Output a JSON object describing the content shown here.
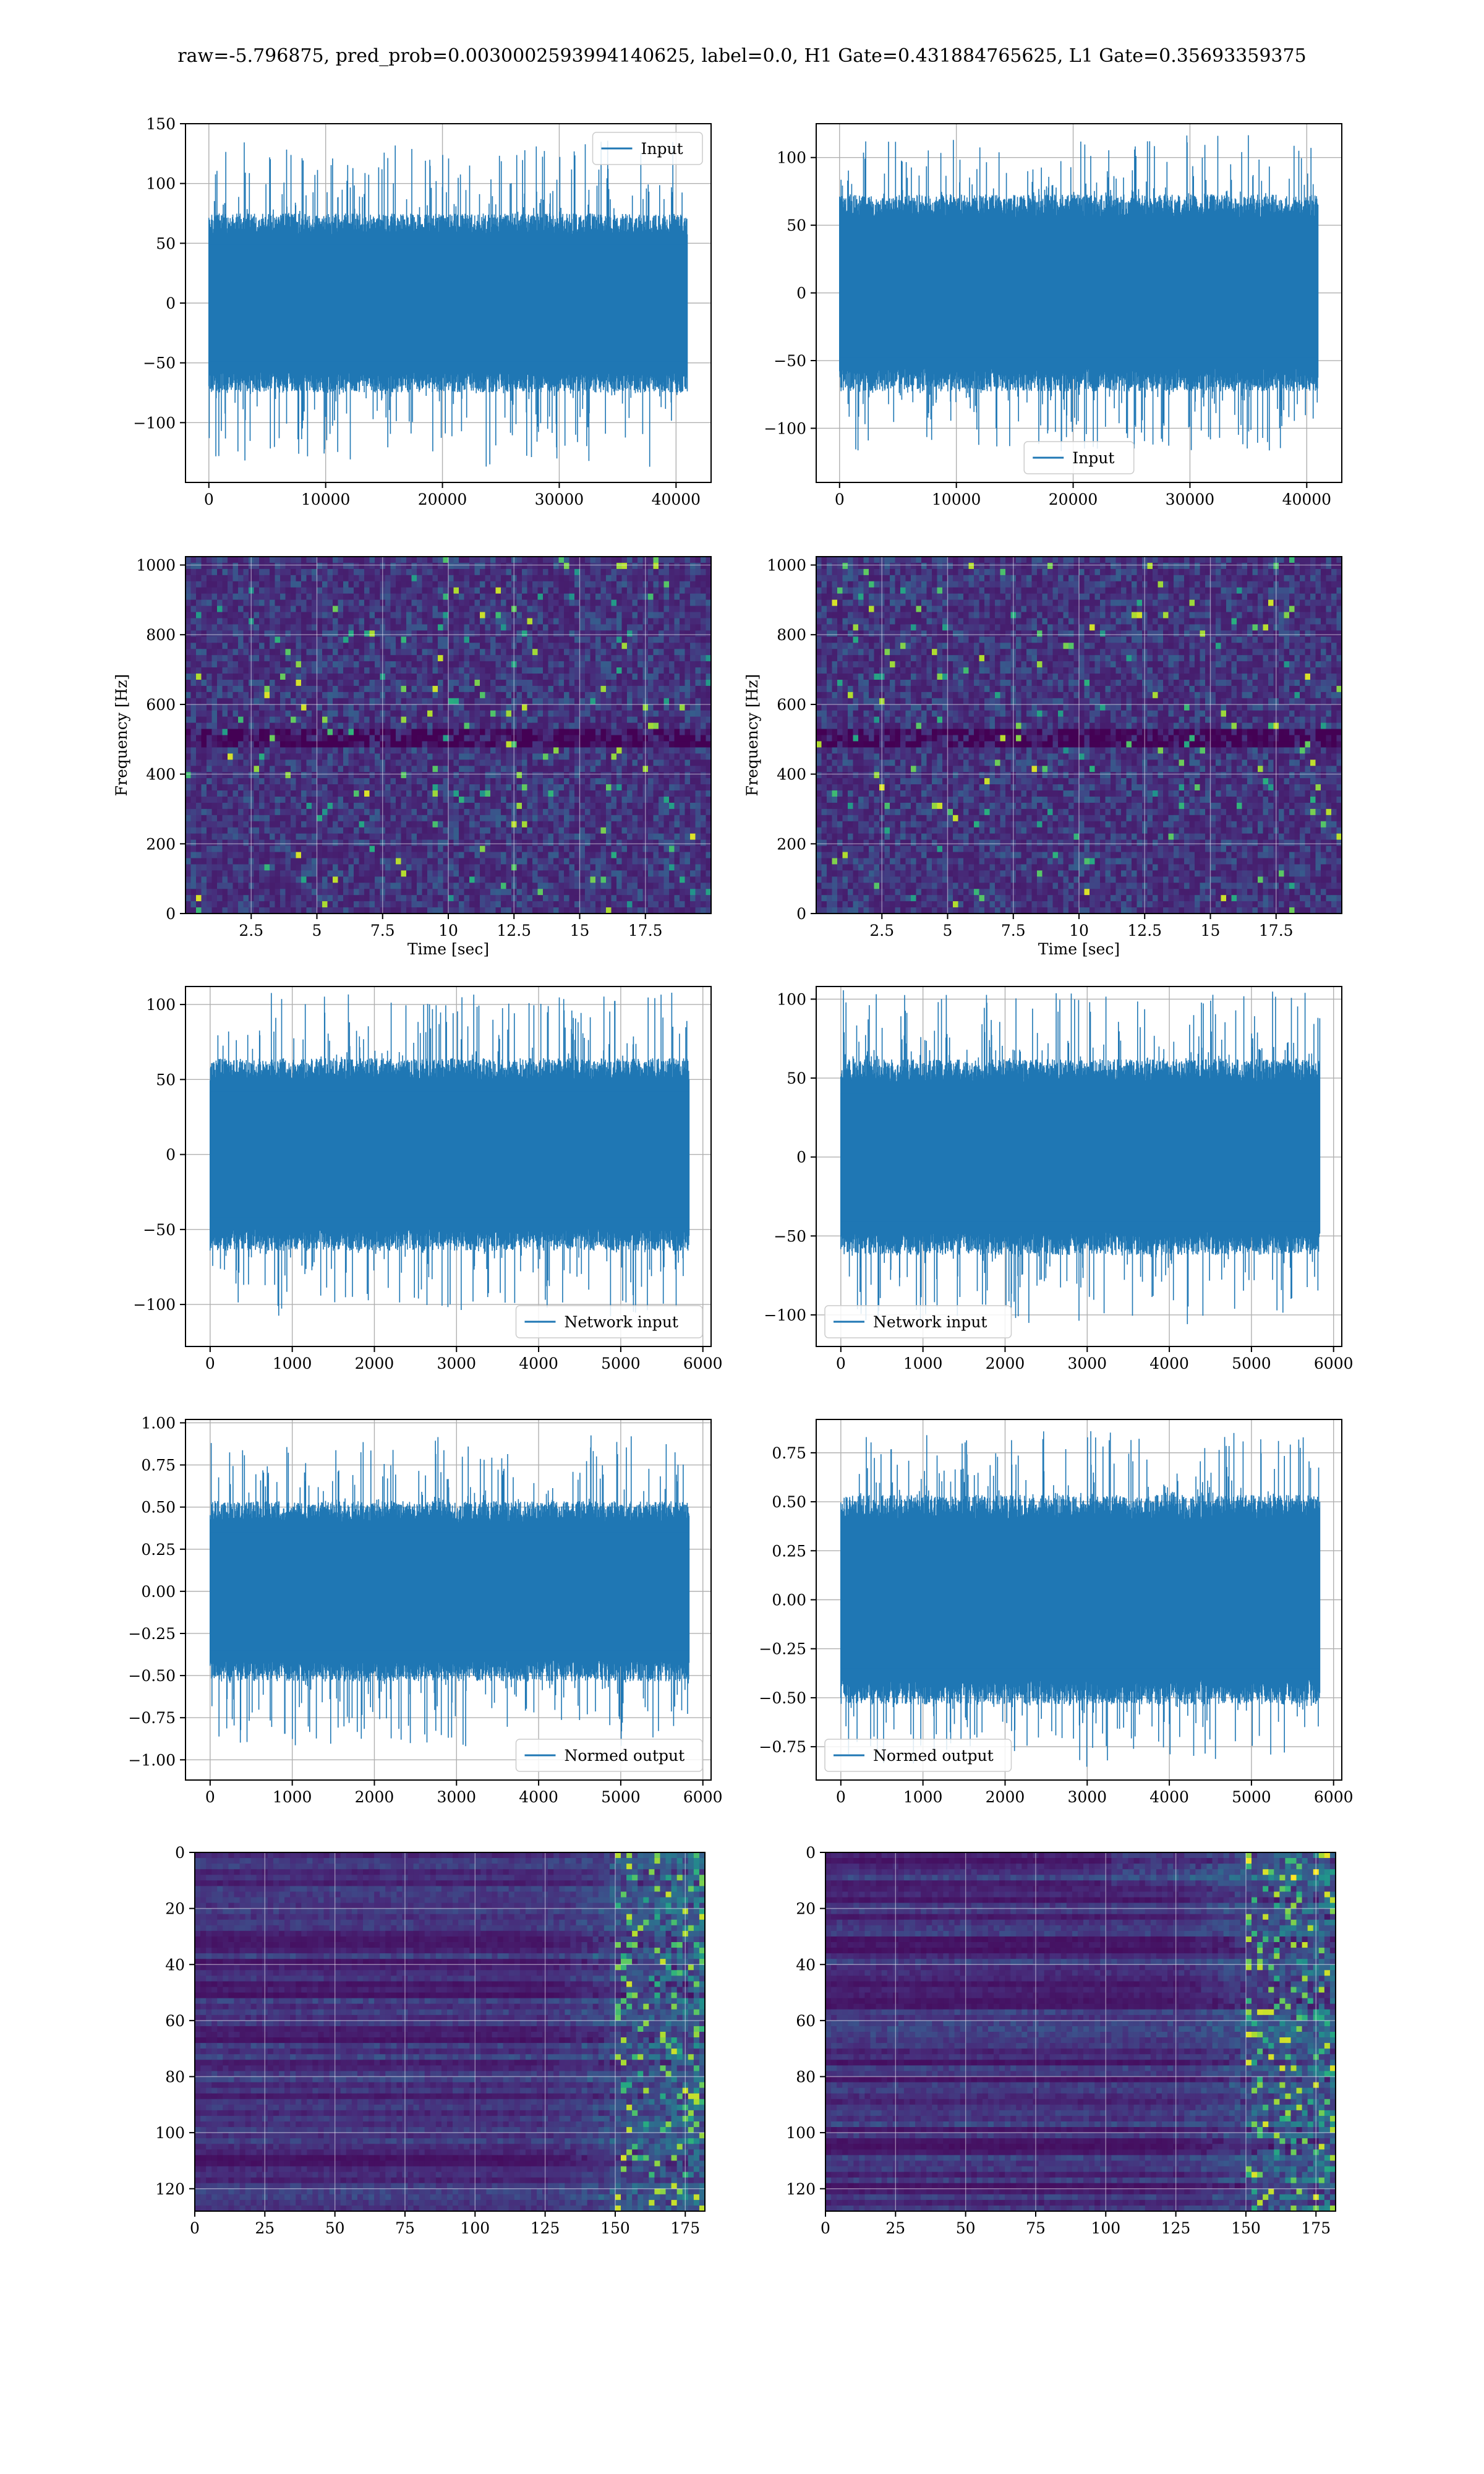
{
  "figure": {
    "suptitle": "raw=-5.796875, pred_prob=0.0030002593994140625, label=0.0, H1 Gate=0.431884765625, L1 Gate=0.35693359375"
  },
  "colors": {
    "series": "#1f77b4",
    "grid": "#b0b0b0",
    "viridis": [
      "#440154",
      "#472d7b",
      "#3b528b",
      "#2c728e",
      "#21918c",
      "#28ae80",
      "#5ec962",
      "#addc30",
      "#fde725"
    ]
  },
  "chart_data": [
    {
      "id": "h1-input",
      "type": "line",
      "column": 0,
      "row": 0,
      "xlim": [
        -2000,
        43000
      ],
      "ylim": [
        -150,
        150
      ],
      "xticks": [
        0,
        10000,
        20000,
        30000,
        40000
      ],
      "yticks": [
        -100,
        -50,
        0,
        50,
        100,
        150
      ],
      "xlabel": "",
      "ylabel": "",
      "grid": true,
      "series": [
        {
          "name": "Input",
          "x_range": [
            0,
            40960
          ],
          "envelope_core": 70,
          "envelope_peak": 137
        }
      ],
      "legend": {
        "position": "upper-right"
      }
    },
    {
      "id": "l1-input",
      "type": "line",
      "column": 1,
      "row": 0,
      "xlim": [
        -2000,
        43000
      ],
      "ylim": [
        -140,
        125
      ],
      "xticks": [
        0,
        10000,
        20000,
        30000,
        40000
      ],
      "yticks": [
        -100,
        -50,
        0,
        50,
        100
      ],
      "xlabel": "",
      "ylabel": "",
      "grid": true,
      "series": [
        {
          "name": "Input",
          "x_range": [
            0,
            40960
          ],
          "envelope_core": 68,
          "envelope_peak": 117
        }
      ],
      "legend": {
        "position": "lower-center"
      }
    },
    {
      "id": "h1-spectrogram",
      "type": "heatmap",
      "column": 0,
      "row": 1,
      "xlim": [
        0,
        20
      ],
      "ylim": [
        0,
        1024
      ],
      "xticks": [
        2.5,
        5.0,
        7.5,
        10.0,
        12.5,
        15.0,
        17.5
      ],
      "yticks": [
        0,
        200,
        400,
        600,
        800,
        1000
      ],
      "xlabel": "Time [sec]",
      "ylabel": "Frequency [Hz]",
      "grid": true,
      "colormap": "viridis"
    },
    {
      "id": "l1-spectrogram",
      "type": "heatmap",
      "column": 1,
      "row": 1,
      "xlim": [
        0,
        20
      ],
      "ylim": [
        0,
        1024
      ],
      "xticks": [
        2.5,
        5.0,
        7.5,
        10.0,
        12.5,
        15.0,
        17.5
      ],
      "yticks": [
        0,
        200,
        400,
        600,
        800,
        1000
      ],
      "xlabel": "Time [sec]",
      "ylabel": "Frequency [Hz]",
      "grid": true,
      "colormap": "viridis"
    },
    {
      "id": "h1-network-input",
      "type": "line",
      "column": 0,
      "row": 2,
      "xlim": [
        -300,
        6100
      ],
      "ylim": [
        -128,
        112
      ],
      "xticks": [
        0,
        1000,
        2000,
        3000,
        4000,
        5000,
        6000
      ],
      "yticks": [
        -100,
        -50,
        0,
        50,
        100
      ],
      "xlabel": "",
      "ylabel": "",
      "grid": true,
      "series": [
        {
          "name": "Network input",
          "x_range": [
            0,
            5832
          ],
          "envelope_core": 60,
          "envelope_peak": 108
        }
      ],
      "legend": {
        "position": "lower-right"
      }
    },
    {
      "id": "l1-network-input",
      "type": "line",
      "column": 1,
      "row": 2,
      "xlim": [
        -300,
        6100
      ],
      "ylim": [
        -120,
        108
      ],
      "xticks": [
        0,
        1000,
        2000,
        3000,
        4000,
        5000,
        6000
      ],
      "yticks": [
        -100,
        -50,
        0,
        50,
        100
      ],
      "xlabel": "",
      "ylabel": "",
      "grid": true,
      "series": [
        {
          "name": "Network input",
          "x_range": [
            0,
            5832
          ],
          "envelope_core": 58,
          "envelope_peak": 106
        }
      ],
      "legend": {
        "position": "lower-left"
      }
    },
    {
      "id": "h1-normed-output",
      "type": "line",
      "column": 0,
      "row": 3,
      "xlim": [
        -300,
        6100
      ],
      "ylim": [
        -1.12,
        1.02
      ],
      "xticks": [
        0,
        1000,
        2000,
        3000,
        4000,
        5000,
        6000
      ],
      "yticks": [
        -1.0,
        -0.75,
        -0.5,
        -0.25,
        0.0,
        0.25,
        0.5,
        0.75,
        1.0
      ],
      "ytick_decimals": 2,
      "xlabel": "",
      "ylabel": "",
      "grid": true,
      "series": [
        {
          "name": "Normed output",
          "x_range": [
            0,
            5832
          ],
          "envelope_core": 0.5,
          "envelope_peak": 0.93
        }
      ],
      "legend": {
        "position": "lower-right"
      }
    },
    {
      "id": "l1-normed-output",
      "type": "line",
      "column": 1,
      "row": 3,
      "xlim": [
        -300,
        6100
      ],
      "ylim": [
        -0.92,
        0.92
      ],
      "xticks": [
        0,
        1000,
        2000,
        3000,
        4000,
        5000,
        6000
      ],
      "yticks": [
        -0.75,
        -0.5,
        -0.25,
        0.0,
        0.25,
        0.5,
        0.75
      ],
      "ytick_decimals": 2,
      "xlabel": "",
      "ylabel": "",
      "grid": true,
      "series": [
        {
          "name": "Normed output",
          "x_range": [
            0,
            5832
          ],
          "envelope_core": 0.5,
          "envelope_peak": 0.86
        }
      ],
      "legend": {
        "position": "lower-left"
      }
    },
    {
      "id": "h1-feature-map",
      "type": "heatmap",
      "column": 0,
      "row": 4,
      "xlim": [
        0,
        182
      ],
      "ylim": [
        128,
        0
      ],
      "xticks": [
        0,
        25,
        50,
        75,
        100,
        125,
        150,
        175
      ],
      "yticks": [
        0,
        20,
        40,
        60,
        80,
        100,
        120
      ],
      "xlabel": "",
      "ylabel": "",
      "grid": true,
      "colormap": "viridis"
    },
    {
      "id": "l1-feature-map",
      "type": "heatmap",
      "column": 1,
      "row": 4,
      "xlim": [
        0,
        182
      ],
      "ylim": [
        128,
        0
      ],
      "xticks": [
        0,
        25,
        50,
        75,
        100,
        125,
        150,
        175
      ],
      "yticks": [
        0,
        20,
        40,
        60,
        80,
        100,
        120
      ],
      "xlabel": "",
      "ylabel": "",
      "grid": true,
      "colormap": "viridis"
    }
  ]
}
